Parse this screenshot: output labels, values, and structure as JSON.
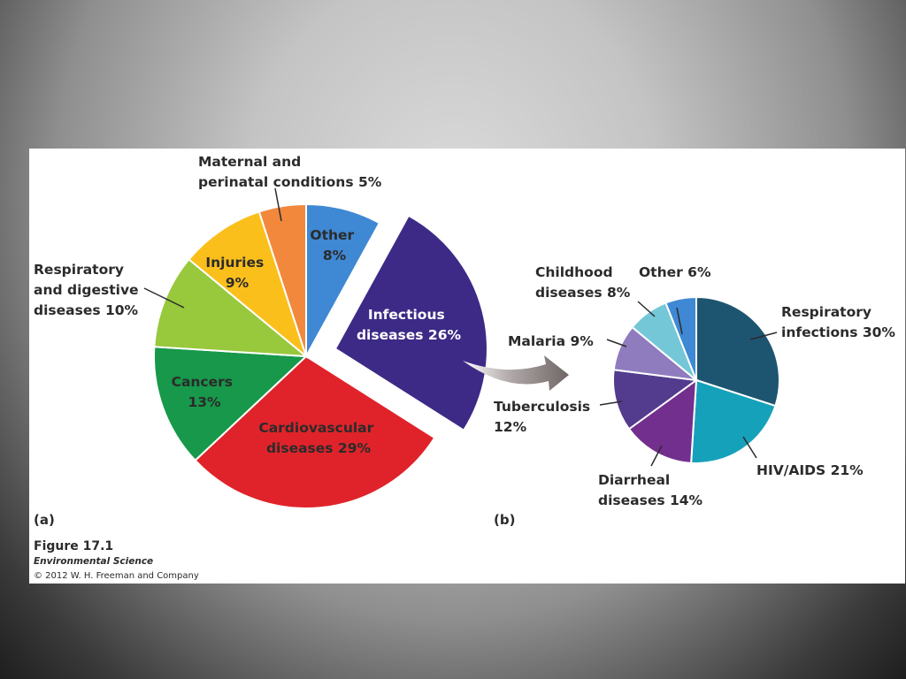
{
  "figure": {
    "number": "Figure 17.1",
    "book": "Environmental Science",
    "copyright": "© 2012 W. H. Freeman and Company"
  },
  "chart_data": [
    {
      "type": "pie",
      "panel": "(a)",
      "categories": [
        "Other",
        "Infectious diseases",
        "Cardiovascular diseases",
        "Cancers",
        "Respiratory and digestive diseases",
        "Injuries",
        "Maternal and perinatal conditions"
      ],
      "values": [
        8,
        26,
        29,
        13,
        10,
        9,
        5
      ],
      "unit": "%",
      "colors": [
        "#3f88d4",
        "#3d2a86",
        "#e0232a",
        "#17984a",
        "#98c83c",
        "#fbbf1c",
        "#f1883c"
      ],
      "exploded": "Infectious diseases",
      "labels": [
        [
          "Other",
          "8%"
        ],
        [
          "Infectious",
          "diseases 26%"
        ],
        [
          "Cardiovascular",
          "diseases 29%"
        ],
        [
          "Cancers",
          "13%"
        ],
        [
          "Respiratory",
          "and digestive",
          "diseases 10%"
        ],
        [
          "Injuries",
          "9%"
        ],
        [
          "Maternal and",
          "perinatal conditions 5%"
        ]
      ]
    },
    {
      "type": "pie",
      "panel": "(b)",
      "categories": [
        "Respiratory infections",
        "HIV/AIDS",
        "Diarrheal diseases",
        "Tuberculosis",
        "Malaria",
        "Childhood diseases",
        "Other"
      ],
      "values": [
        30,
        21,
        14,
        12,
        9,
        8,
        6
      ],
      "unit": "%",
      "colors": [
        "#1d5571",
        "#16a1bb",
        "#732f8d",
        "#533b8e",
        "#8f7cbf",
        "#74c7d6",
        "#3f88d4"
      ],
      "labels": [
        [
          "Respiratory",
          "infections 30%"
        ],
        [
          "HIV/AIDS 21%"
        ],
        [
          "Diarrheal",
          "diseases 14%"
        ],
        [
          "Tuberculosis",
          "12%"
        ],
        [
          "Malaria 9%"
        ],
        [
          "Childhood",
          "diseases 8%"
        ],
        [
          "Other 6%"
        ]
      ]
    }
  ]
}
